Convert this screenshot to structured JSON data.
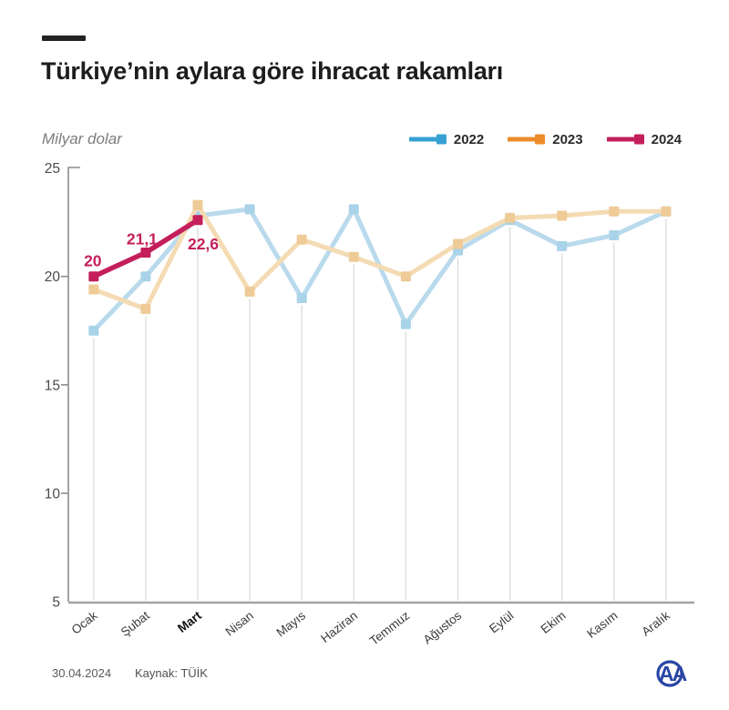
{
  "header": {
    "title": "Türkiye’nin aylara göre ihracat rakamları"
  },
  "footer": {
    "date": "30.04.2024",
    "source": "Kaynak: TÜİK",
    "agency_logo_text": "AA"
  },
  "colors": {
    "title_text": "#1d1d1d",
    "axis": "#8c8c8c",
    "bottom_axis": "#a3a3a3",
    "grid": "#dcdcdc",
    "tick_label": "#4a4a4a",
    "month_label": "#3a3a3a",
    "logo_blue": "#2946A5"
  },
  "chart_data": {
    "type": "line",
    "title": "Türkiye’nin aylara göre ihracat rakamları",
    "xlabel": "",
    "ylabel": "Milyar dolar",
    "ylim": [
      5,
      25
    ],
    "yticks": [
      25,
      20,
      15,
      10,
      5
    ],
    "grid": "vertical drop lines from lowest point to x-axis",
    "legend_position": "top-right",
    "categories": [
      "Ocak",
      "Şubat",
      "Mart",
      "Nisan",
      "Mayıs",
      "Haziran",
      "Temmuz",
      "Ağustos",
      "Eylül",
      "Ekim",
      "Kasım",
      "Aralık"
    ],
    "highlighted_category": "Mart",
    "series": [
      {
        "name": "2022",
        "color": "#38A1D3",
        "line_color": "#B9DAEC",
        "marker_color": "#A9D3E9",
        "values": [
          17.5,
          20.0,
          22.8,
          23.1,
          19.0,
          23.1,
          17.8,
          21.2,
          22.6,
          21.4,
          21.9,
          23.0
        ]
      },
      {
        "name": "2023",
        "color": "#EC8C2A",
        "line_color": "#F4DBB3",
        "marker_color": "#EECB97",
        "values": [
          19.4,
          18.5,
          23.3,
          19.3,
          21.7,
          20.9,
          20.0,
          21.5,
          22.7,
          22.8,
          23.0,
          23.0
        ]
      },
      {
        "name": "2024",
        "color": "#C41F5B",
        "line_color": "#C41F5B",
        "marker_color": "#C41F5B",
        "values": [
          20.0,
          21.1,
          22.6,
          null,
          null,
          null,
          null,
          null,
          null,
          null,
          null,
          null
        ],
        "point_labels": [
          {
            "index": 0,
            "text": "20",
            "dx": -1,
            "dy": -11,
            "anchor": "middle"
          },
          {
            "index": 1,
            "text": "21,1",
            "dx": -4,
            "dy": -9,
            "anchor": "middle"
          },
          {
            "index": 2,
            "text": "22,6",
            "dx": 6,
            "dy": 32,
            "anchor": "middle"
          }
        ]
      }
    ]
  }
}
